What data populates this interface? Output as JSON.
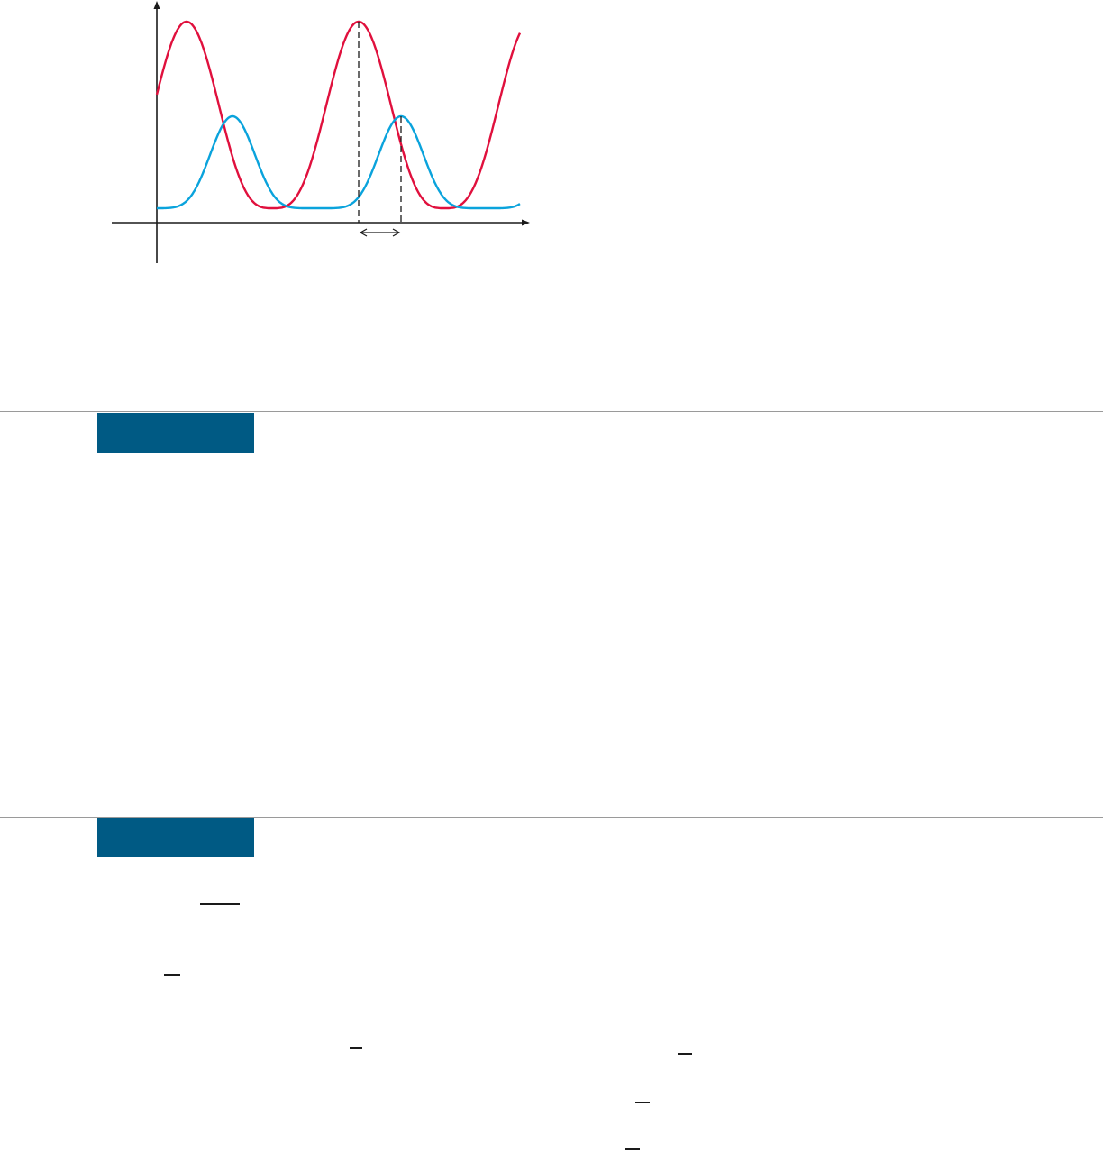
{
  "figure": {
    "colors": {
      "axis": "#1a1a1a",
      "wave_a": "#e0103d",
      "wave_b": "#0aa3dc",
      "guide": "#1a1a1a"
    }
  },
  "sections": [
    {
      "tab_color": "#005a84",
      "label": ""
    },
    {
      "tab_color": "#005a84",
      "label": ""
    }
  ],
  "colors": {
    "rule": "#9a9a9a"
  }
}
